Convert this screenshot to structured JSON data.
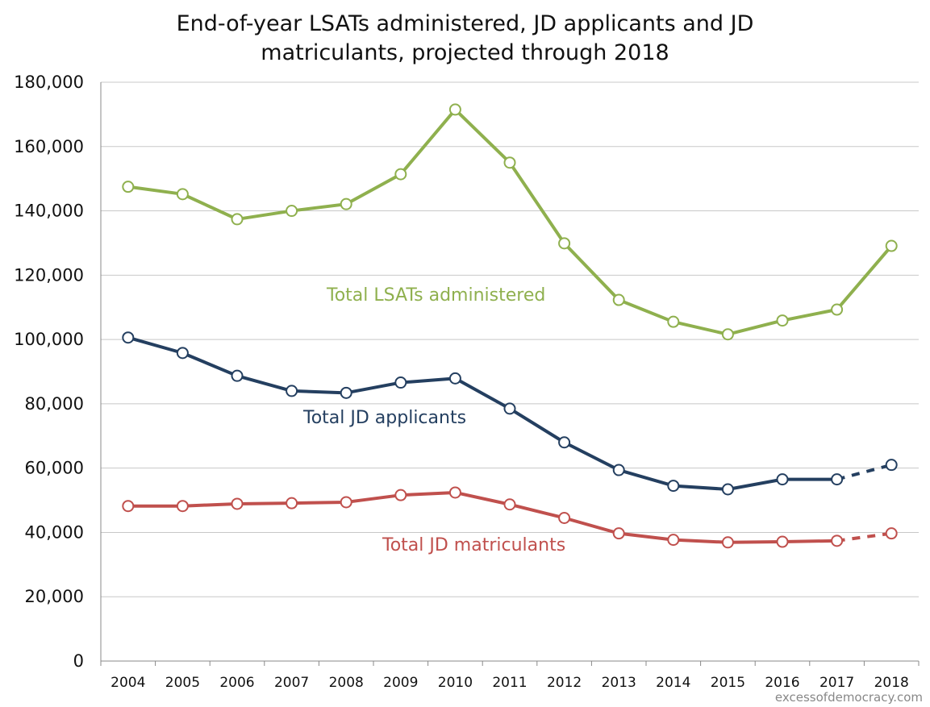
{
  "chart_data": {
    "type": "line",
    "title_line1": "End-of-year LSATs administered, JD applicants and JD",
    "title_line2": "matriculants, projected through 2018",
    "ylim": [
      0,
      180000
    ],
    "yticks": [
      0,
      20000,
      40000,
      60000,
      80000,
      100000,
      120000,
      140000,
      160000,
      180000
    ],
    "ytick_labels": [
      "0",
      "20,000",
      "40,000",
      "60,000",
      "80,000",
      "100,000",
      "120,000",
      "140,000",
      "160,000",
      "180,000"
    ],
    "grid": true,
    "categories": [
      "2004",
      "2005",
      "2006",
      "2007",
      "2008",
      "2009",
      "2010",
      "2011",
      "2012",
      "2013",
      "2014",
      "2015",
      "2016",
      "2017",
      "2018"
    ],
    "series": [
      {
        "name": "Total LSATs administered",
        "color": "#8fb04e",
        "values": [
          147500,
          145200,
          137400,
          140000,
          142100,
          151400,
          171500,
          155000,
          129900,
          112300,
          105500,
          101600,
          105900,
          109300,
          129100
        ],
        "projected_from_index": null
      },
      {
        "name": "Total JD applicants",
        "color": "#243f60",
        "values": [
          100600,
          95800,
          88700,
          84000,
          83400,
          86600,
          87900,
          78500,
          68000,
          59400,
          54500,
          53400,
          56500,
          56500,
          61000
        ],
        "projected_from_index": 13
      },
      {
        "name": "Total JD matriculants",
        "color": "#c0504d",
        "values": [
          48200,
          48200,
          48900,
          49100,
          49400,
          51600,
          52400,
          48700,
          44500,
          39700,
          37700,
          36900,
          37100,
          37400,
          39700
        ],
        "projected_from_index": 13
      }
    ],
    "annotations": [
      "Total LSATs administered",
      "Total JD applicants",
      "Total JD matriculants"
    ],
    "watermark": "excessofdemocracy.com"
  }
}
